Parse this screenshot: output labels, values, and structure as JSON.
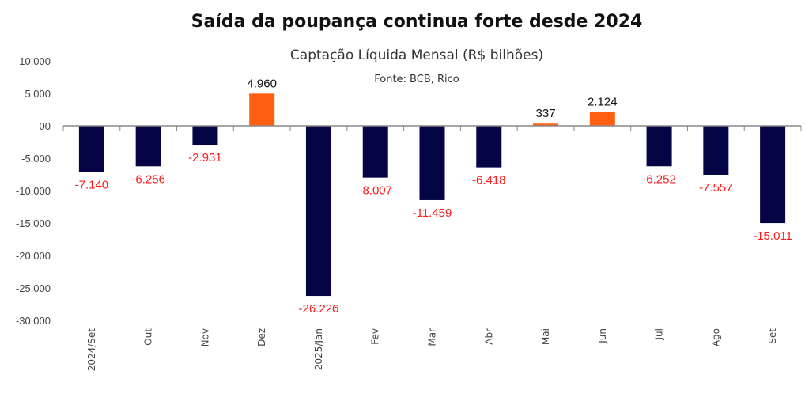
{
  "chart_data": {
    "type": "bar",
    "title": "Saída da poupança continua forte desde 2024",
    "subtitle": "Captação Líquida Mensal (R$ bilhões)",
    "source": "Fonte: BCB, Rico",
    "xlabel": "",
    "ylabel": "",
    "ylim": [
      -30000,
      10000
    ],
    "yticks": [
      10000,
      5000,
      0,
      -5000,
      -10000,
      -15000,
      -20000,
      -25000,
      -30000
    ],
    "ytick_labels": [
      "10.000",
      "5.000",
      "00",
      "-5.000",
      "-10.000",
      "-15.000",
      "-20.000",
      "-25.000",
      "-30.000"
    ],
    "categories": [
      "2024/Set",
      "Out",
      "Nov",
      "Dez",
      "2025/Jan",
      "Fev",
      "Mar",
      "Abr",
      "Mai",
      "Jun",
      "Jul",
      "Ago",
      "Set"
    ],
    "values": [
      -7140,
      -6256,
      -2931,
      4960,
      -26226,
      -8007,
      -11459,
      -6418,
      337,
      2124,
      -6252,
      -7557,
      -15011
    ],
    "value_labels": [
      "-7.140",
      "-6.256",
      "-2.931",
      "4.960",
      "-26.226",
      "-8.007",
      "-11.459",
      "-6.418",
      "337",
      "2.124",
      "-6.252",
      "-7.557",
      "-15.011"
    ],
    "grid": false,
    "legend": "none",
    "colors": {
      "negative_bar": "#050545",
      "positive_bar": "#ff5f0f",
      "negative_label": "#ff1a1a",
      "positive_label": "#111111",
      "axis": "#888888"
    }
  }
}
